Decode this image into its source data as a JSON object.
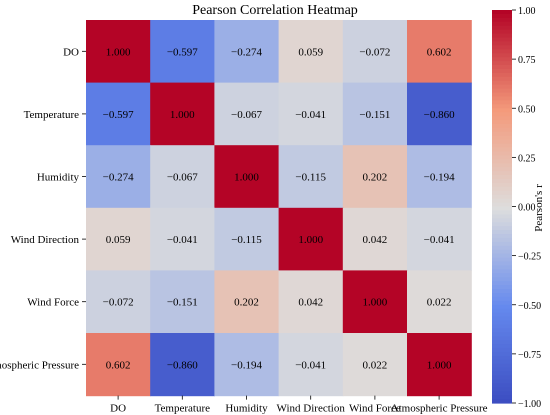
{
  "chart_data": {
    "type": "heatmap",
    "title": "Pearson Correlation Heatmap",
    "x_categories": [
      "DO",
      "Temperature",
      "Humidity",
      "Wind Direction",
      "Wind Force",
      "Atmospheric Pressure"
    ],
    "y_categories": [
      "DO",
      "Temperature",
      "Humidity",
      "Wind Direction",
      "Wind Force",
      "Atmospheric Pressure"
    ],
    "values": [
      [
        1.0,
        -0.597,
        -0.274,
        0.059,
        -0.072,
        0.602
      ],
      [
        -0.597,
        1.0,
        -0.067,
        -0.041,
        -0.151,
        -0.86
      ],
      [
        -0.274,
        -0.067,
        1.0,
        -0.115,
        0.202,
        -0.194
      ],
      [
        0.059,
        -0.041,
        -0.115,
        1.0,
        0.042,
        -0.041
      ],
      [
        -0.072,
        -0.151,
        0.202,
        0.042,
        1.0,
        0.022
      ],
      [
        0.602,
        -0.86,
        -0.194,
        -0.041,
        0.022,
        1.0
      ]
    ],
    "value_labels": [
      [
        "1.000",
        "−0.597",
        "−0.274",
        "0.059",
        "−0.072",
        "0.602"
      ],
      [
        "−0.597",
        "1.000",
        "−0.067",
        "−0.041",
        "−0.151",
        "−0.860"
      ],
      [
        "−0.274",
        "−0.067",
        "1.000",
        "−0.115",
        "0.202",
        "−0.194"
      ],
      [
        "0.059",
        "−0.041",
        "−0.115",
        "1.000",
        "0.042",
        "−0.041"
      ],
      [
        "−0.072",
        "−0.151",
        "0.202",
        "0.042",
        "1.000",
        "0.022"
      ],
      [
        "0.602",
        "−0.860",
        "−0.194",
        "−0.041",
        "0.022",
        "1.000"
      ]
    ],
    "colorbar": {
      "label": "Pearson's r",
      "range": [
        -1.0,
        1.0
      ],
      "ticks": [
        1.0,
        0.75,
        0.5,
        0.25,
        0.0,
        -0.25,
        -0.5,
        -0.75,
        -1.0
      ],
      "tick_labels": [
        "1.00",
        "0.75",
        "0.50",
        "0.25",
        "0.00",
        "−0.25",
        "−0.50",
        "−0.75",
        "−1.00"
      ],
      "colormap": "coolwarm",
      "color_low": "#3b4cc0",
      "color_mid": "#dddddd",
      "color_high": "#b40426"
    }
  }
}
